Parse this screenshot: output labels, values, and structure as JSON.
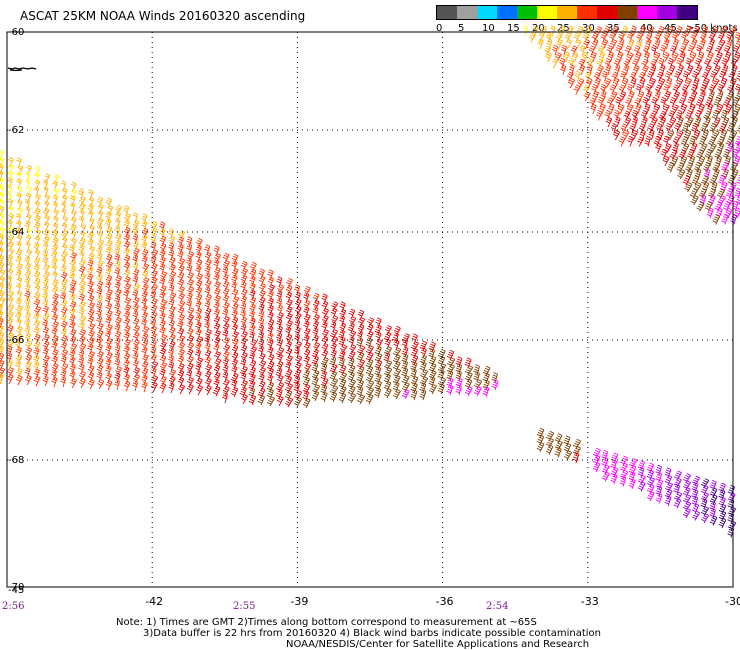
{
  "title": "ASCAT 25KM NOAA Winds 20160320 ascending",
  "speed_scale": {
    "labels": [
      "0",
      "5",
      "10",
      "15",
      "20",
      "25",
      "30",
      "35",
      "40",
      "45",
      ">50 knots"
    ],
    "colors": [
      "#555555",
      "#a0a0a0",
      "#00d8ff",
      "#0070ff",
      "#00c000",
      "#ffff00",
      "#ffb000",
      "#ff3000",
      "#e00000",
      "#804000",
      "#ff00ff",
      "#a000e0",
      "#400080"
    ]
  },
  "map": {
    "lon_range": [
      -45,
      -30
    ],
    "lat_range": [
      -70,
      -60
    ],
    "lon_ticks": [
      "-42",
      "-39",
      "-36",
      "-33",
      "-30"
    ],
    "lat_ticks": [
      "-60",
      "-62",
      "-64",
      "-66",
      "-68",
      "-70"
    ],
    "corner_label": "-45",
    "time_labels": [
      "2:56",
      "2:55",
      "2:54"
    ],
    "land": "coastline near -45,-60.7",
    "grid": "dotted"
  },
  "wind_swaths": [
    {
      "name": "northeast-swath",
      "speed_range_knots": [
        20,
        45
      ]
    },
    {
      "name": "central-swath",
      "speed_range_knots": [
        20,
        40
      ]
    },
    {
      "name": "southeast-swath",
      "speed_range_knots": [
        35,
        50
      ]
    }
  ],
  "notes": [
    "Note: 1) Times are GMT 2)Times along bottom correspond to measurement at ~65S",
    "3)Data buffer is 22 hrs from 20160320 4) Black wind barbs indicate possible contamination",
    "NOAA/NESDIS/Center for Satellite Applications and Research"
  ]
}
